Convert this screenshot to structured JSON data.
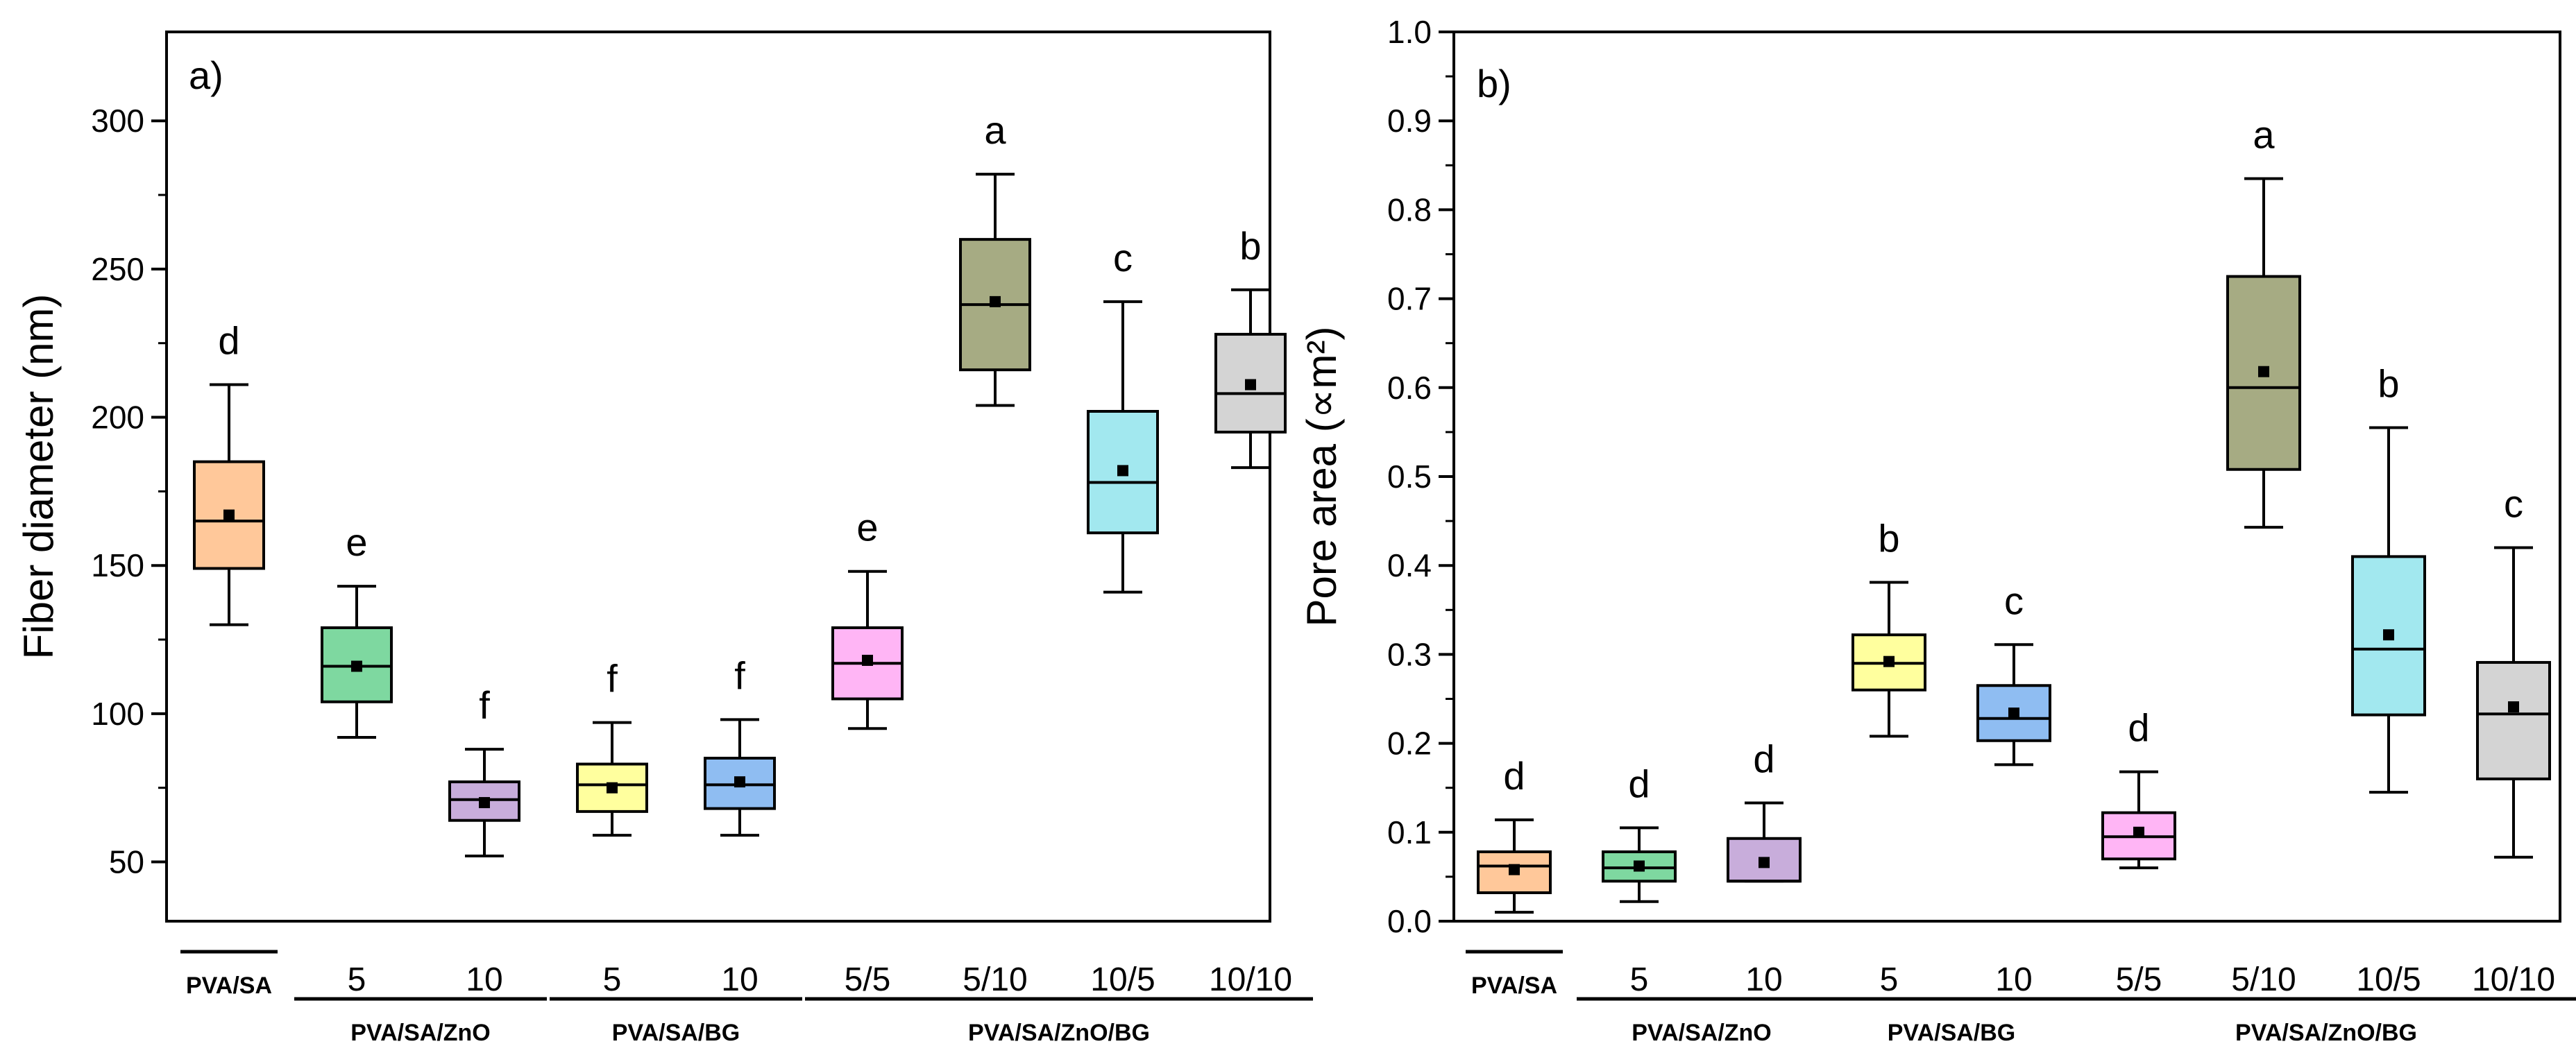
{
  "chart_data": [
    {
      "id": "a",
      "type": "box",
      "panel_label": "a)",
      "ylabel": "Fiber diameter (nm)",
      "ylim": [
        30,
        330
      ],
      "yticks": [
        50,
        100,
        150,
        200,
        250,
        300
      ],
      "categories": [
        "",
        "5",
        "10",
        "5",
        "10",
        "5/5",
        "5/10",
        "10/5",
        "10/10"
      ],
      "groups": [
        {
          "label": "PVA/SA",
          "from": 0,
          "to": 0
        },
        {
          "label": "PVA/SA/ZnO",
          "from": 1,
          "to": 2
        },
        {
          "label": "PVA/SA/BG",
          "from": 3,
          "to": 4
        },
        {
          "label": "PVA/SA/ZnO/BG",
          "from": 5,
          "to": 8
        }
      ],
      "boxes": [
        {
          "min": 130,
          "q1": 149,
          "median": 165,
          "q3": 185,
          "max": 211,
          "mean": 167,
          "letter": "d"
        },
        {
          "min": 92,
          "q1": 104,
          "median": 116,
          "q3": 129,
          "max": 143,
          "mean": 116,
          "letter": "e"
        },
        {
          "min": 52,
          "q1": 64,
          "median": 71,
          "q3": 77,
          "max": 88,
          "mean": 70,
          "letter": "f"
        },
        {
          "min": 59,
          "q1": 67,
          "median": 76,
          "q3": 83,
          "max": 97,
          "mean": 75,
          "letter": "f"
        },
        {
          "min": 59,
          "q1": 68,
          "median": 76,
          "q3": 85,
          "max": 98,
          "mean": 77,
          "letter": "f"
        },
        {
          "min": 95,
          "q1": 105,
          "median": 117,
          "q3": 129,
          "max": 148,
          "mean": 118,
          "letter": "e"
        },
        {
          "min": 204,
          "q1": 216,
          "median": 238,
          "q3": 260,
          "max": 282,
          "mean": 239,
          "letter": "a"
        },
        {
          "min": 141,
          "q1": 161,
          "median": 178,
          "q3": 202,
          "max": 239,
          "mean": 182,
          "letter": "c"
        },
        {
          "min": 183,
          "q1": 195,
          "median": 208,
          "q3": 228,
          "max": 243,
          "mean": 211,
          "letter": "b"
        }
      ]
    },
    {
      "id": "b",
      "type": "box",
      "panel_label": "b)",
      "ylabel": "Pore area (∝m²)",
      "ylim": [
        0,
        1.0
      ],
      "yticks": [
        0.0,
        0.1,
        0.2,
        0.3,
        0.4,
        0.5,
        0.6,
        0.7,
        0.8,
        0.9,
        1.0
      ],
      "categories": [
        "",
        "5",
        "10",
        "5",
        "10",
        "5/5",
        "5/10",
        "10/5",
        "10/10"
      ],
      "groups": [
        {
          "label": "PVA/SA",
          "from": 0,
          "to": 0
        },
        {
          "label": "PVA/SA/ZnO",
          "from": 1,
          "to": 2
        },
        {
          "label": "PVA/SA/BG",
          "from": 3,
          "to": 4
        },
        {
          "label": "PVA/SA/ZnO/BG",
          "from": 5,
          "to": 8
        }
      ],
      "boxes": [
        {
          "min": 0.01,
          "q1": 0.032,
          "median": 0.062,
          "q3": 0.078,
          "max": 0.114,
          "mean": 0.058,
          "letter": "d"
        },
        {
          "min": 0.022,
          "q1": 0.045,
          "median": 0.06,
          "q3": 0.078,
          "max": 0.105,
          "mean": 0.062,
          "letter": "d"
        },
        {
          "min": 0.045,
          "q1": 0.045,
          "median": 0.045,
          "q3": 0.093,
          "max": 0.133,
          "mean": 0.066,
          "letter": "d"
        },
        {
          "min": 0.208,
          "q1": 0.26,
          "median": 0.29,
          "q3": 0.322,
          "max": 0.381,
          "mean": 0.292,
          "letter": "b"
        },
        {
          "min": 0.176,
          "q1": 0.203,
          "median": 0.228,
          "q3": 0.265,
          "max": 0.311,
          "mean": 0.234,
          "letter": "c"
        },
        {
          "min": 0.06,
          "q1": 0.07,
          "median": 0.095,
          "q3": 0.122,
          "max": 0.168,
          "mean": 0.1,
          "letter": "d"
        },
        {
          "min": 0.443,
          "q1": 0.508,
          "median": 0.6,
          "q3": 0.725,
          "max": 0.835,
          "mean": 0.618,
          "letter": "a"
        },
        {
          "min": 0.145,
          "q1": 0.232,
          "median": 0.306,
          "q3": 0.41,
          "max": 0.555,
          "mean": 0.322,
          "letter": "b"
        },
        {
          "min": 0.072,
          "q1": 0.16,
          "median": 0.233,
          "q3": 0.291,
          "max": 0.42,
          "mean": 0.241,
          "letter": "c"
        }
      ]
    }
  ],
  "colors": {
    "box_fills": [
      "#FFC89A",
      "#7ED8A0",
      "#C8ADDB",
      "#FFFF9E",
      "#8FBDF2",
      "#FFB5F5",
      "#A6AB83",
      "#A2E8EF",
      "#D4D4D4"
    ],
    "stroke": "#000000"
  }
}
